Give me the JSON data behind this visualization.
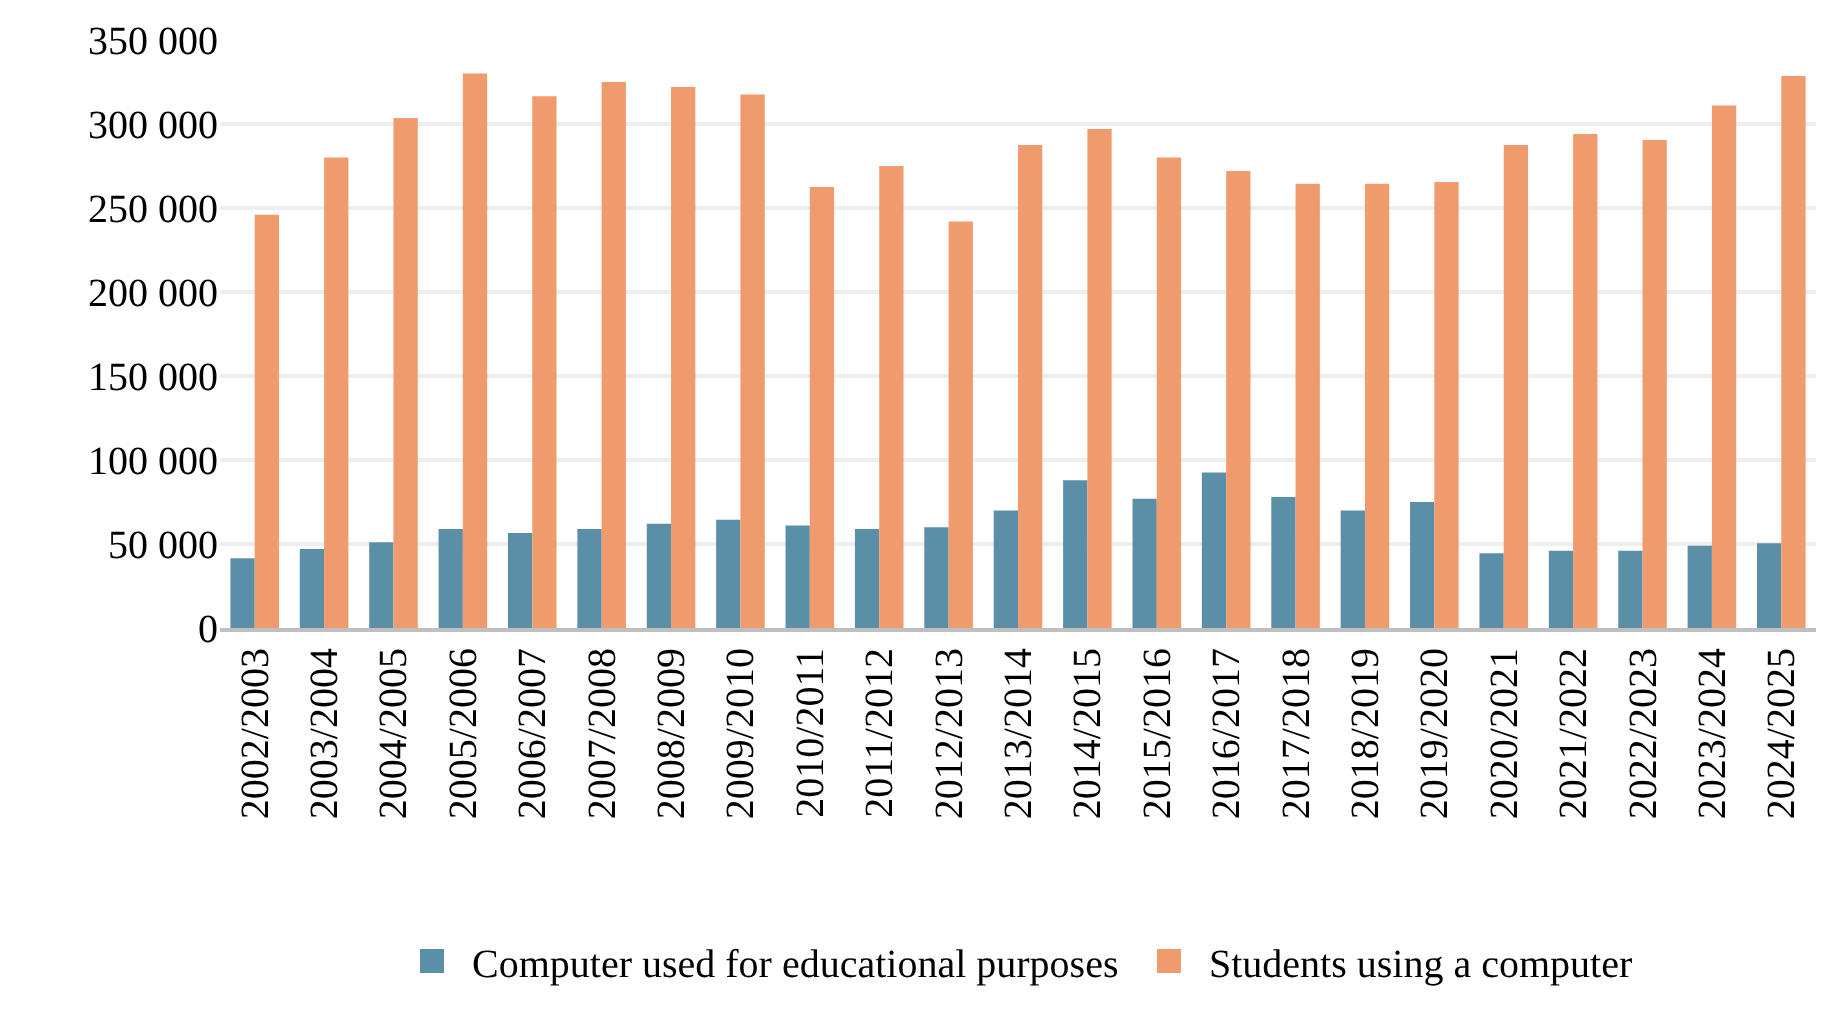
{
  "chart_data": {
    "type": "bar",
    "categories": [
      "2002/2003",
      "2003/2004",
      "2004/2005",
      "2005/2006",
      "2006/2007",
      "2007/2008",
      "2008/2009",
      "2009/2010",
      "2010/2011",
      "2011/2012",
      "2012/2013",
      "2013/2014",
      "2014/2015",
      "2015/2016",
      "2016/2017",
      "2017/2018",
      "2018/2019",
      "2019/2020",
      "2020/2021",
      "2021/2022",
      "2022/2023",
      "2023/2024",
      "2024/2025"
    ],
    "series": [
      {
        "name": "Computer used for educational purposes",
        "color": "#5b8fa8",
        "values": [
          41500,
          47000,
          51000,
          59000,
          56500,
          59000,
          62000,
          64500,
          61000,
          59000,
          60000,
          70000,
          88000,
          77000,
          92500,
          78000,
          70000,
          75000,
          44500,
          46000,
          46000,
          49000,
          50500
        ]
      },
      {
        "name": "Students using a computer",
        "color": "#ef9b6e",
        "values": [
          246000,
          280000,
          303500,
          330000,
          316500,
          325000,
          322000,
          317500,
          262500,
          275000,
          242000,
          287500,
          297000,
          280000,
          272000,
          264500,
          264500,
          265500,
          287500,
          294000,
          290500,
          311000,
          328500
        ]
      }
    ],
    "ylim": [
      0,
      350000
    ],
    "yticks": [
      {
        "value": 0,
        "label": "0"
      },
      {
        "value": 50000,
        "label": "50 000"
      },
      {
        "value": 100000,
        "label": "100 000"
      },
      {
        "value": 150000,
        "label": "150 000"
      },
      {
        "value": 200000,
        "label": "200 000"
      },
      {
        "value": 250000,
        "label": "250 000"
      },
      {
        "value": 300000,
        "label": "300 000"
      },
      {
        "value": 350000,
        "label": "350 000"
      }
    ],
    "grid": "y",
    "legend": "bottom"
  }
}
